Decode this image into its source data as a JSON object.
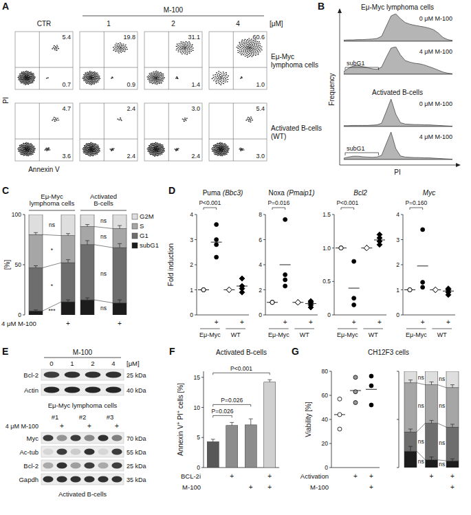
{
  "chart_data": [
    {
      "panel": "A",
      "type": "flow_cytometry",
      "x_label": "Annexin V",
      "y_label": "PI",
      "columns": [
        "CTR",
        "1",
        "2",
        "4"
      ],
      "column_group": "M-100",
      "unit": "[μM]",
      "rows": [
        {
          "label": [
            "Eμ-Myc",
            "lymphoma cells"
          ],
          "upper_right": [
            5.4,
            19.8,
            31.1,
            60.6
          ],
          "upper_right_labels": [
            "5.4",
            "19.8",
            "31.1",
            "60.6"
          ],
          "lower_right": [
            0.7,
            0.9,
            1.4,
            1.0
          ],
          "lower_right_labels": [
            "0.7",
            "0.9",
            "1.4",
            "1.0"
          ]
        },
        {
          "label": [
            "Activated B-cells",
            "(WT)"
          ],
          "upper_right": [
            4.7,
            2.4,
            3.0,
            5.4
          ],
          "upper_right_labels": [
            "4.7",
            "2.4",
            "3.0",
            "5.4"
          ],
          "lower_right": [
            3.6,
            2.4,
            2.4,
            3.0
          ],
          "lower_right_labels": [
            "3.6",
            "2.4",
            "2.4",
            "3.0"
          ]
        }
      ]
    },
    {
      "panel": "B",
      "type": "histogram",
      "x_label": "PI",
      "y_label": "Frequency",
      "gate": "subG1",
      "ylim": [
        0,
        100
      ],
      "tick_labels": false,
      "groups": [
        {
          "title": "Eμ-Myc lymphoma cells",
          "traces": [
            {
              "label": "0 μM M-100",
              "values": [
                4,
                5,
                5,
                6,
                6,
                7,
                8,
                10,
                18,
                55,
                92,
                100,
                82,
                68,
                62,
                58,
                55,
                52,
                48,
                42,
                30,
                14,
                6,
                3
              ]
            },
            {
              "label": "4 μM M-100",
              "values": [
                10,
                22,
                30,
                32,
                28,
                24,
                20,
                18,
                26,
                62,
                95,
                100,
                70,
                50,
                44,
                40,
                38,
                34,
                28,
                22,
                15,
                8,
                4,
                2
              ]
            }
          ]
        },
        {
          "title": "Activated B-cells",
          "traces": [
            {
              "label": "0 μM M-100",
              "values": [
                3,
                3,
                4,
                4,
                4,
                4,
                5,
                6,
                12,
                55,
                100,
                45,
                14,
                9,
                8,
                7,
                7,
                6,
                6,
                5,
                4,
                3,
                2,
                1
              ]
            },
            {
              "label": "4 μM M-100",
              "values": [
                5,
                9,
                12,
                12,
                10,
                9,
                8,
                9,
                15,
                58,
                100,
                40,
                13,
                9,
                8,
                7,
                7,
                6,
                6,
                5,
                4,
                3,
                2,
                1
              ]
            }
          ]
        }
      ]
    },
    {
      "panel": "C",
      "type": "bar",
      "stacked": true,
      "legend": "right",
      "y_label": "[%]",
      "ylim": [
        0,
        100
      ],
      "yticks": [
        0,
        50,
        100
      ],
      "row_label": "4 μM M-100",
      "categories": [
        null,
        "+",
        null,
        "+"
      ],
      "groups": [
        [
          "Eμ-Myc",
          "lymphoma cells"
        ],
        [
          "Activated",
          "B-cells"
        ]
      ],
      "series": [
        {
          "name": "subG1",
          "color": "#1c1c1c",
          "values": [
            4,
            13,
            15,
            12
          ],
          "errors": [
            1,
            2,
            2,
            3
          ]
        },
        {
          "name": "G1",
          "color": "#6e6e6e",
          "values": [
            43,
            39,
            55,
            55
          ],
          "errors": [
            2,
            3,
            4,
            4
          ]
        },
        {
          "name": "S",
          "color": "#a6a6a6",
          "values": [
            33,
            27,
            18,
            19
          ],
          "errors": [
            2,
            2,
            2,
            3
          ]
        },
        {
          "name": "G2M",
          "color": "#dedede",
          "values": [
            20,
            21,
            12,
            14
          ]
        }
      ],
      "significance": [
        [
          "***",
          "*",
          "*",
          "ns"
        ],
        [
          "ns",
          "ns",
          "ns",
          "ns"
        ]
      ]
    },
    {
      "panel": "D",
      "type": "scatter",
      "y_label": "Fold induction",
      "categories": [
        null,
        "+",
        null,
        "+"
      ],
      "groups": [
        "Eμ-Myc",
        "WT"
      ],
      "plots": [
        {
          "title": "Puma",
          "gene": "(Bbc3)",
          "annotation": "P<0.001",
          "ylim": [
            0,
            4
          ],
          "yticks": [
            0,
            1,
            2,
            3,
            4
          ],
          "series": [
            {
              "marker": "open-circle",
              "values": [
                1,
                1,
                1,
                1
              ],
              "mean": 1
            },
            {
              "marker": "circle",
              "values": [
                2.3,
                2.8,
                3.0,
                3.6
              ],
              "mean": 2.9
            },
            {
              "marker": "open-diamond",
              "values": [
                1,
                1,
                1,
                1
              ],
              "mean": 1
            },
            {
              "marker": "diamond",
              "values": [
                0.9,
                1.05,
                1.15,
                1.45
              ],
              "mean": 1.15
            }
          ]
        },
        {
          "title": "Noxa",
          "gene": "(Pmaip1)",
          "annotation": "P=0.016",
          "ylim": [
            0,
            8
          ],
          "yticks": [
            0,
            2,
            4,
            6,
            8
          ],
          "series": [
            {
              "marker": "open-circle",
              "values": [
                1,
                1,
                1,
                1
              ],
              "mean": 1
            },
            {
              "marker": "circle",
              "values": [
                2.3,
                2.8,
                3.2,
                7.6
              ],
              "mean": 4.0
            },
            {
              "marker": "open-diamond",
              "values": [
                1,
                1,
                1,
                1
              ],
              "mean": 1
            },
            {
              "marker": "diamond",
              "values": [
                0.6,
                0.8,
                1.0,
                1.1
              ],
              "mean": 0.9
            }
          ]
        },
        {
          "gene": "Bcl2",
          "annotation": "P<0.001",
          "ylim": [
            0,
            1.5
          ],
          "yticks": [
            0,
            0.5,
            {
              "value": 1,
              "label": "1.0"
            },
            1.5
          ],
          "series": [
            {
              "marker": "open-circle",
              "values": [
                1,
                1,
                1
              ],
              "mean": 1
            },
            {
              "marker": "circle",
              "values": [
                0.15,
                0.25,
                0.8
              ],
              "mean": 0.4
            },
            {
              "marker": "open-diamond",
              "values": [
                1,
                1,
                1,
                1
              ],
              "mean": 1
            },
            {
              "marker": "diamond",
              "values": [
                1.05,
                1.1,
                1.15,
                1.2
              ],
              "mean": 1.12
            }
          ]
        },
        {
          "gene": "Myc",
          "annotation": "P=0.160",
          "ylim": [
            0,
            4
          ],
          "yticks": [
            0,
            1,
            2,
            3,
            4
          ],
          "series": [
            {
              "marker": "open-circle",
              "values": [
                1,
                1,
                1
              ],
              "mean": 1
            },
            {
              "marker": "circle",
              "values": [
                1.1,
                1.3,
                3.4
              ],
              "mean": 1.95
            },
            {
              "marker": "open-diamond",
              "values": [
                1,
                1,
                1,
                1
              ],
              "mean": 1
            },
            {
              "marker": "diamond",
              "values": [
                0.8,
                0.9,
                1.0,
                1.05
              ],
              "mean": 0.95
            }
          ]
        }
      ]
    },
    {
      "panel": "E",
      "type": "western_blot",
      "blots": [
        {
          "column_group": "M-100",
          "columns": [
            "0",
            "1",
            "2",
            "4"
          ],
          "unit": "[μM]",
          "caption": "Eμ-Myc lymphoma cells",
          "rows": [
            {
              "protein": "Bcl-2",
              "size": "25 kDa",
              "intensity": [
                0.8,
                0.85,
                0.85,
                0.85
              ]
            },
            {
              "protein": "Actin",
              "size": "40 kDa",
              "intensity": [
                0.9,
                0.9,
                0.9,
                0.9
              ]
            }
          ]
        },
        {
          "row_label": "4 μM M-100",
          "groups": [
            "#1",
            "#2",
            "#3"
          ],
          "columns": [
            null,
            "+",
            null,
            "+",
            null,
            "+"
          ],
          "caption": "Activated B-cells",
          "rows": [
            {
              "protein": "Myc",
              "size": "70 kDa",
              "intensity": [
                0.8,
                0.4,
                0.8,
                0.45,
                0.85,
                0.5
              ]
            },
            {
              "protein": "Ac-tub",
              "size": "55 kDa",
              "intensity": [
                0.1,
                0.8,
                0.15,
                0.85,
                0.1,
                0.8
              ]
            },
            {
              "protein": "Bcl-2",
              "size": "25 kDa",
              "intensity": [
                0.3,
                0.85,
                0.35,
                0.8,
                0.3,
                0.8
              ]
            },
            {
              "protein": "Gapdh",
              "size": "35 kDa",
              "intensity": [
                0.85,
                0.85,
                0.85,
                0.85,
                0.85,
                0.85
              ]
            }
          ]
        }
      ]
    },
    {
      "panel": "F",
      "type": "bar",
      "title": "Activated B-cells",
      "y_label": "Annexin V+ PI+ cells [%]",
      "ylim": [
        0,
        16
      ],
      "yticks": [
        0,
        5,
        10,
        15
      ],
      "values": [
        4.3,
        7.0,
        7.1,
        14.2
      ],
      "errors": [
        0.4,
        0.5,
        1.0,
        0.4
      ],
      "colors": [
        "#585858",
        "#8c8c8c",
        "#8c8c8c",
        "#d0d0d0"
      ],
      "rows": [
        {
          "label": "BCL-2i",
          "values": [
            null,
            "+",
            null,
            "+"
          ]
        },
        {
          "label": "M-100",
          "values": [
            null,
            null,
            "+",
            "+"
          ]
        }
      ],
      "comparisons": [
        "P=0.026",
        "P=0.026",
        "P<0.001"
      ]
    },
    {
      "panel": "G",
      "title": "CH12F3 cells",
      "rows": [
        {
          "label": "Activation",
          "values": [
            null,
            "+",
            "+"
          ]
        },
        {
          "label": "M-100",
          "values": [
            null,
            null,
            "+"
          ]
        }
      ],
      "charts": [
        {
          "type": "scatter",
          "y_label": "Viability [%]",
          "ylim": [
            0,
            80
          ],
          "yticks": [
            0,
            20,
            40,
            60,
            80
          ],
          "series": [
            {
              "marker": "open-circle",
              "color": "#ffffff",
              "values": [
                32,
                44,
                57
              ],
              "mean": 44
            },
            {
              "marker": "circle",
              "color": "#9a9a9a",
              "values": [
                54,
                63,
                75
              ],
              "mean": 64
            },
            {
              "marker": "circle",
              "color": "#000000",
              "values": [
                52,
                68,
                76
              ],
              "mean": 65
            }
          ]
        },
        {
          "type": "bar",
          "stacked": true,
          "ylim": [
            0,
            100
          ],
          "yticks": [
            0,
            50,
            100
          ],
          "tick_labels": false,
          "series": [
            {
              "color": "#1c1c1c",
              "values": [
                17,
                8,
                7
              ],
              "errors": [
                5,
                3,
                2
              ]
            },
            {
              "color": "#6e6e6e",
              "values": [
                20,
                38,
                35
              ],
              "errors": [
                3,
                3,
                3
              ]
            },
            {
              "color": "#a6a6a6",
              "values": [
                51,
                40,
                41
              ],
              "errors": [
                3,
                3,
                3
              ]
            },
            {
              "color": "#dedede",
              "values": [
                12,
                14,
                17
              ]
            }
          ],
          "significance": [
            [
              "ns",
              "ns",
              "ns",
              "ns"
            ],
            [
              "ns",
              "ns",
              "ns",
              "ns"
            ]
          ]
        }
      ]
    }
  ]
}
